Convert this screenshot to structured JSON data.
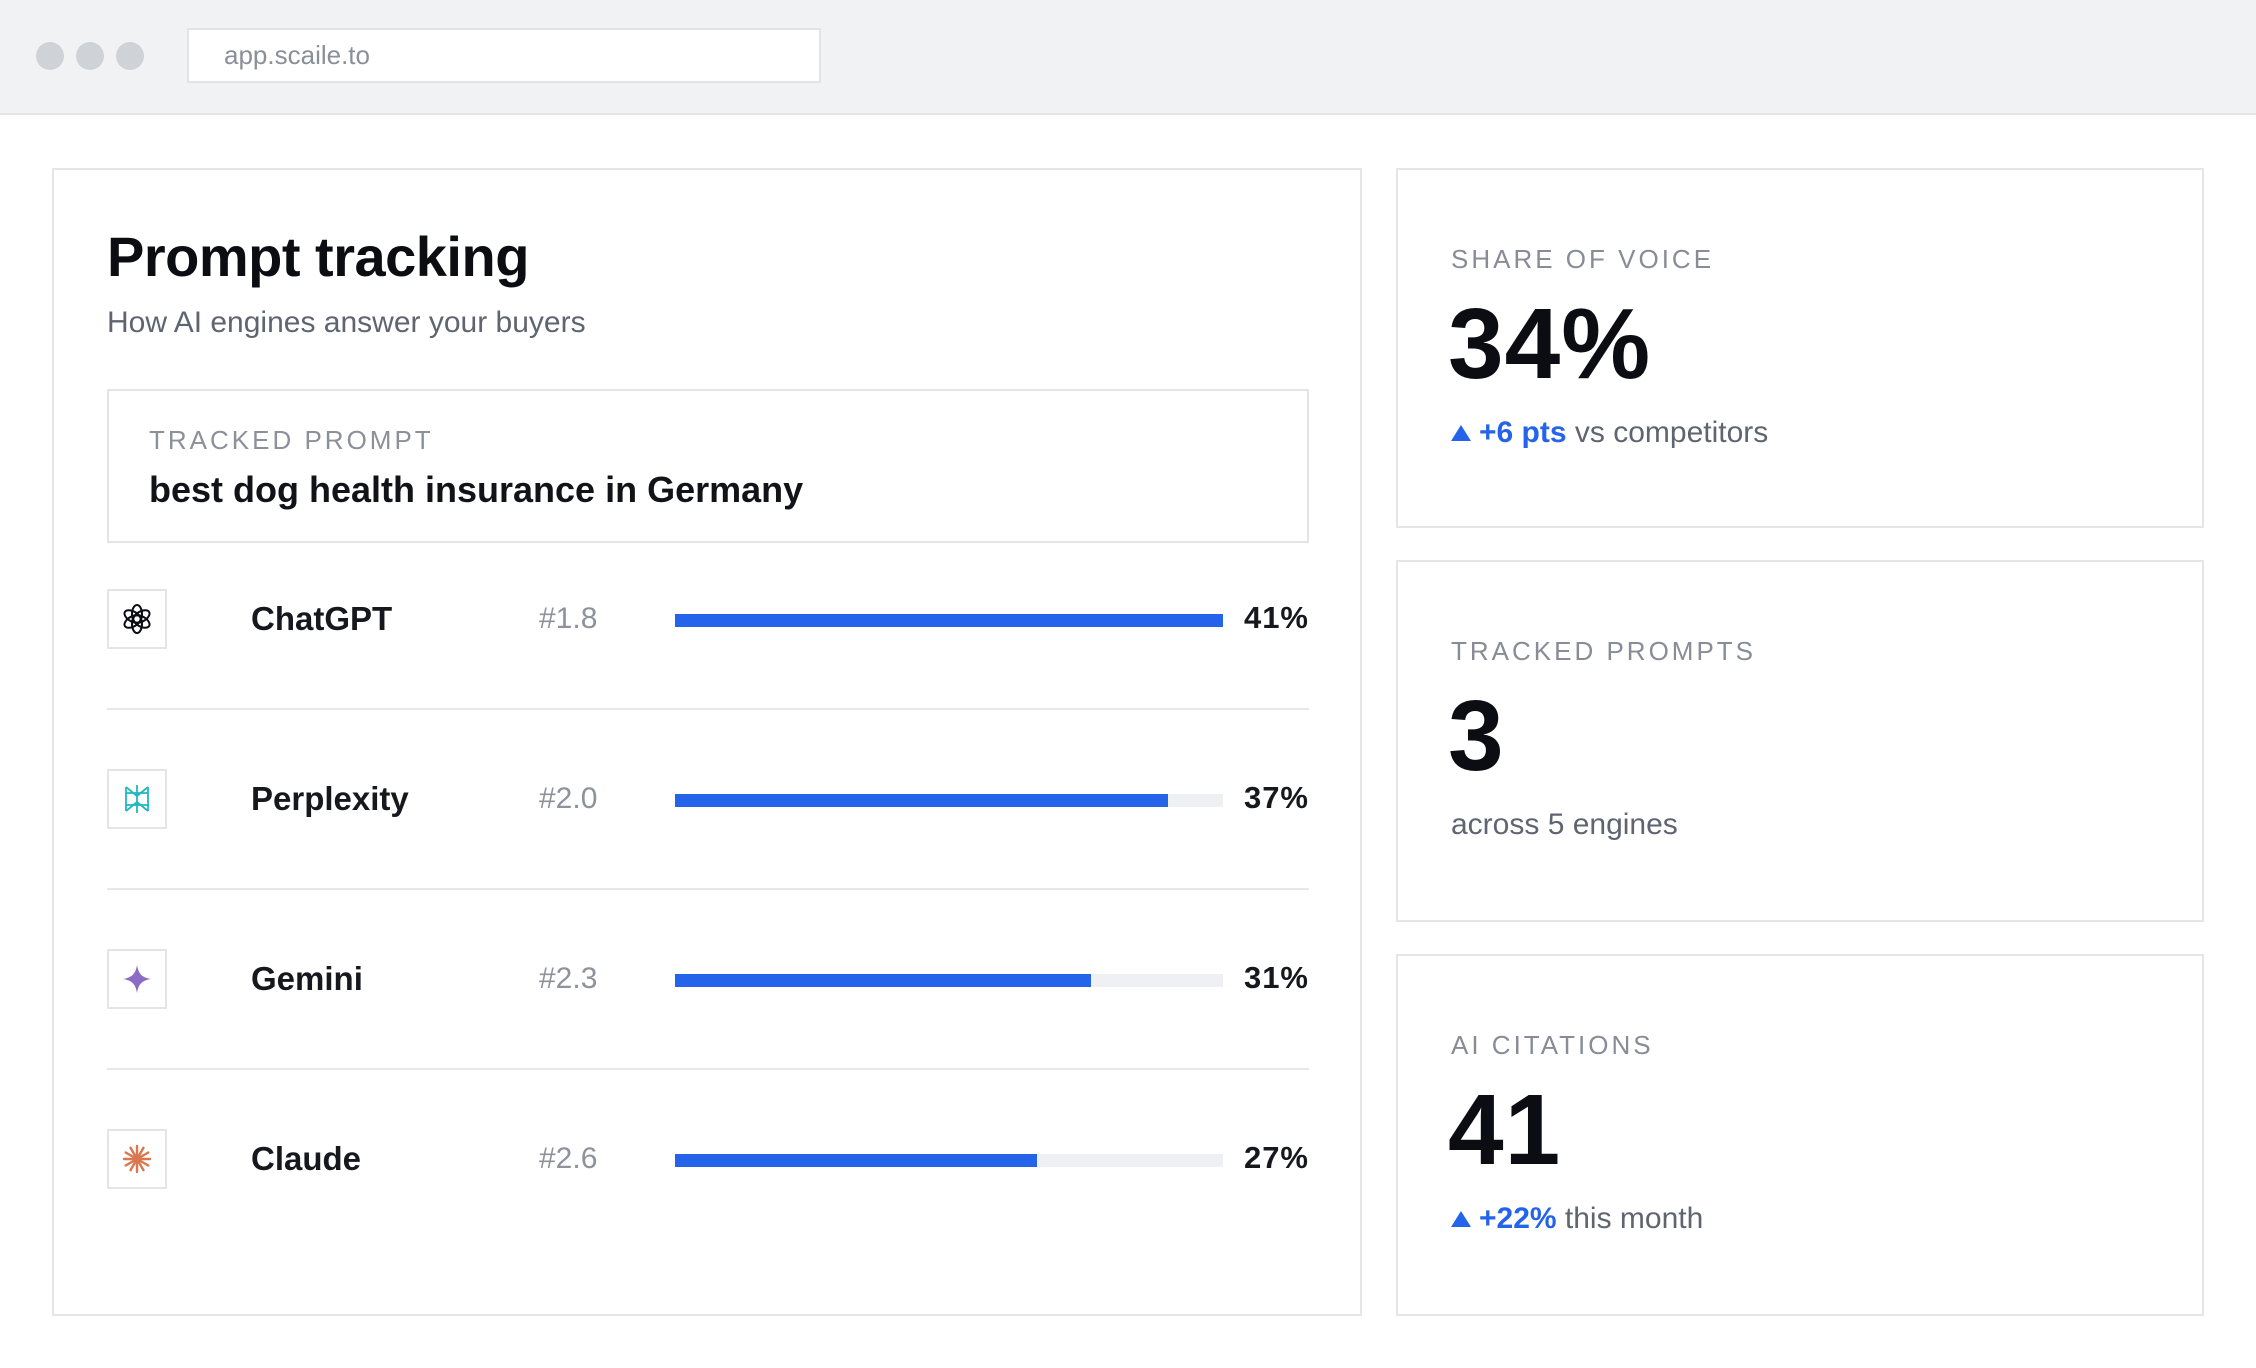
{
  "browser": {
    "url": "app.scaile.to"
  },
  "prompt_tracking": {
    "title": "Prompt tracking",
    "subtitle": "How AI engines answer your buyers",
    "tracked_prompt_label": "TRACKED PROMPT",
    "tracked_prompt_text": "best dog health insurance in Germany",
    "engines": [
      {
        "name": "ChatGPT",
        "icon": "chatgpt-icon",
        "rank": "#1.8",
        "percent_label": "41%",
        "share": 41,
        "bar_fill": 1.0,
        "color": "#0b0d12"
      },
      {
        "name": "Perplexity",
        "icon": "perplexity-icon",
        "rank": "#2.0",
        "percent_label": "37%",
        "share": 37,
        "bar_fill": 0.9,
        "color": "#20b8c0"
      },
      {
        "name": "Gemini",
        "icon": "gemini-icon",
        "rank": "#2.3",
        "percent_label": "31%",
        "share": 31,
        "bar_fill": 0.76,
        "color": "#8a6cc4"
      },
      {
        "name": "Claude",
        "icon": "claude-icon",
        "rank": "#2.6",
        "percent_label": "27%",
        "share": 27,
        "bar_fill": 0.66,
        "color": "#d9774f"
      }
    ]
  },
  "stats": {
    "share_of_voice": {
      "label": "SHARE OF VOICE",
      "value": "34%",
      "delta": "+6 pts",
      "delta_suffix": " vs competitors"
    },
    "tracked_prompts": {
      "label": "TRACKED PROMPTS",
      "value": "3",
      "note": "across 5 engines"
    },
    "ai_citations": {
      "label": "AI CITATIONS",
      "value": "41",
      "delta": "+22%",
      "delta_suffix": " this month"
    }
  },
  "colors": {
    "accent": "#2563eb",
    "bar_track": "#eef0f3",
    "border": "#e4e6ea",
    "chrome": "#f1f2f4"
  }
}
